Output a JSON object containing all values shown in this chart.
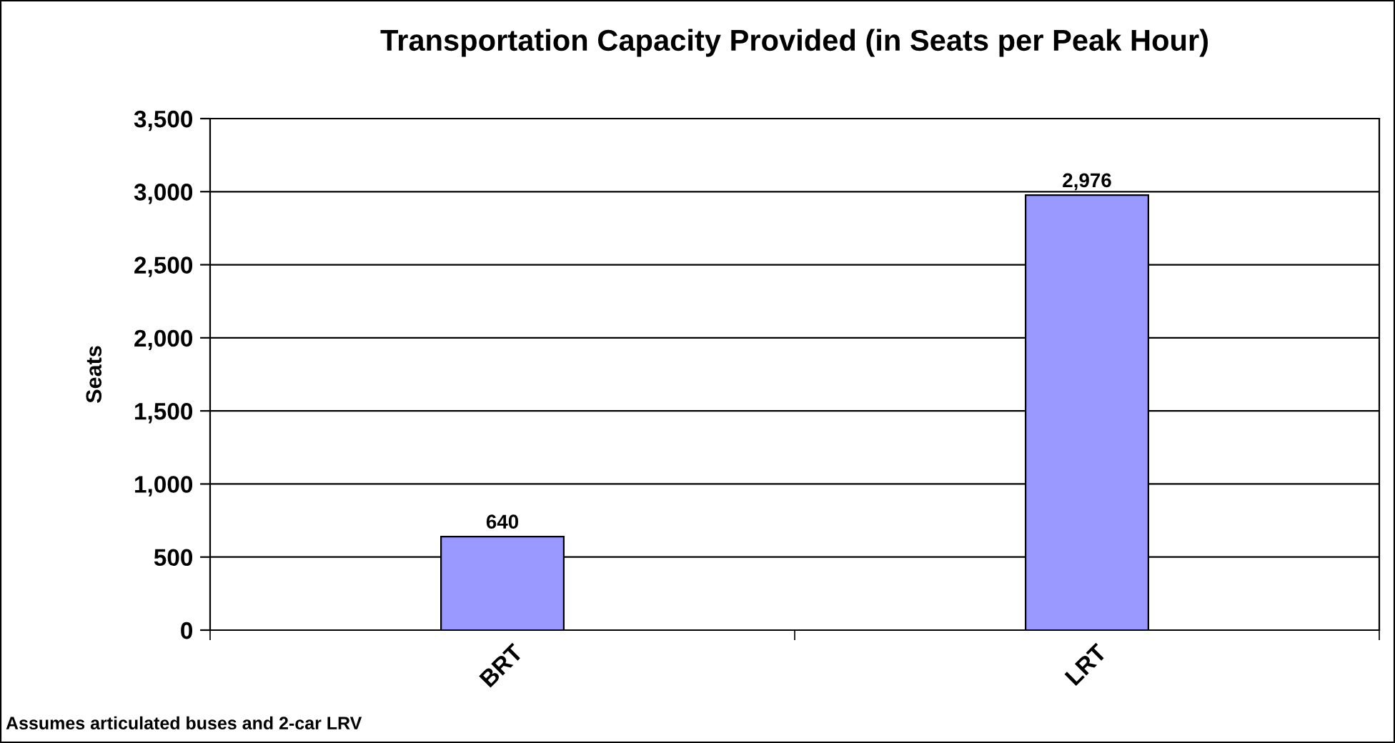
{
  "chart_data": {
    "type": "bar",
    "title": "Transportation Capacity Provided (in Seats per Peak Hour)",
    "ylabel": "Seats",
    "categories": [
      "BRT",
      "LRT"
    ],
    "values": [
      640,
      2976
    ],
    "value_labels": [
      "640",
      "2,976"
    ],
    "color": "#9999ff",
    "ylim": [
      0,
      3500
    ],
    "yticks": [
      {
        "value": 0,
        "label": "0"
      },
      {
        "value": 500,
        "label": "500"
      },
      {
        "value": 1000,
        "label": "1,000"
      },
      {
        "value": 1500,
        "label": "1,500"
      },
      {
        "value": 2000,
        "label": "2,000"
      },
      {
        "value": 2500,
        "label": "2,500"
      },
      {
        "value": 3000,
        "label": "3,000"
      },
      {
        "value": 3500,
        "label": "3,500"
      }
    ],
    "grid": "y",
    "annotations": [
      "Assumes articulated buses and 2-car LRV"
    ]
  }
}
